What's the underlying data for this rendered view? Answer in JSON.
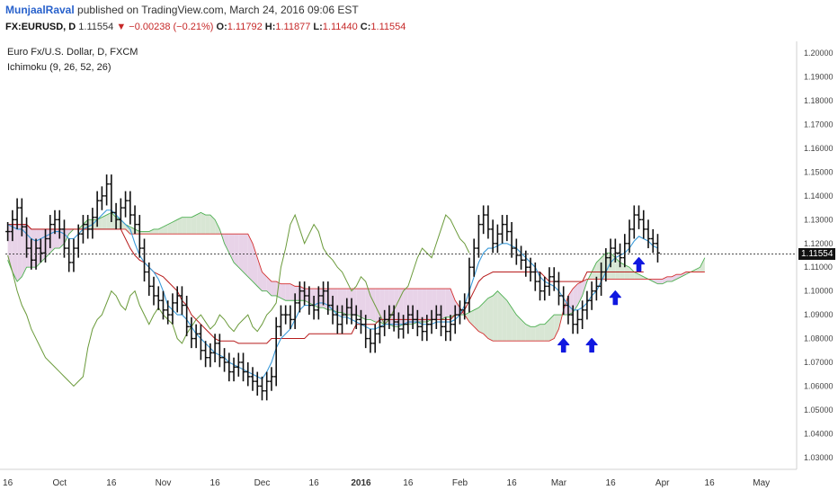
{
  "header": {
    "author": "MunjaalRaval",
    "published": "published on TradingView.com, March 24, 2016 09:06 EST",
    "symbol": "FX:EURUSD, D",
    "last": "1.11554",
    "change": "−0.00238 (−0.21%)",
    "open_label": "O:",
    "open": "1.11792",
    "high_label": "H:",
    "high": "1.11877",
    "low_label": "L:",
    "low": "1.11440",
    "close_label": "C:",
    "close": "1.11554"
  },
  "legend": {
    "instrument": "Euro Fx/U.S. Dollar, D, FXCM",
    "indicator": "Ichimoku (9, 26, 52, 26)"
  },
  "price_tag": "1.11554",
  "colors": {
    "conversion": "#3a9ad9",
    "base": "#b71c1c",
    "lagging": "#6a9a3a",
    "cloud_bear": "#e8d3e8",
    "cloud_bull": "#d8e6d4",
    "span_a": "#4caf50",
    "span_b": "#d32f2f",
    "arrow": "#1018e0"
  },
  "chart_data": {
    "type": "ohlc",
    "ylim": [
      1.025,
      1.205
    ],
    "y_ticks": [
      "1.20000",
      "1.19000",
      "1.18000",
      "1.17000",
      "1.16000",
      "1.15000",
      "1.14000",
      "1.13000",
      "1.12000",
      "1.11000",
      "1.10000",
      "1.09000",
      "1.08000",
      "1.07000",
      "1.06000",
      "1.05000",
      "1.04000",
      "1.03000"
    ],
    "x_ticks": [
      {
        "label": "16",
        "bar": 0
      },
      {
        "label": "Oct",
        "bar": 11
      },
      {
        "label": "16",
        "bar": 22
      },
      {
        "label": "Nov",
        "bar": 33
      },
      {
        "label": "16",
        "bar": 44
      },
      {
        "label": "Dec",
        "bar": 54
      },
      {
        "label": "16",
        "bar": 65
      },
      {
        "label": "2016",
        "bar": 75
      },
      {
        "label": "16",
        "bar": 85
      },
      {
        "label": "Feb",
        "bar": 96
      },
      {
        "label": "16",
        "bar": 107
      },
      {
        "label": "Mar",
        "bar": 117
      },
      {
        "label": "16",
        "bar": 128
      },
      {
        "label": "Apr",
        "bar": 139
      },
      {
        "label": "16",
        "bar": 149
      },
      {
        "label": "May",
        "bar": 160
      }
    ],
    "total_bars": 168,
    "close": [
      1.125,
      1.13,
      1.135,
      1.127,
      1.118,
      1.113,
      1.118,
      1.116,
      1.122,
      1.128,
      1.13,
      1.126,
      1.118,
      1.112,
      1.118,
      1.124,
      1.128,
      1.126,
      1.131,
      1.138,
      1.14,
      1.145,
      1.133,
      1.13,
      1.135,
      1.138,
      1.132,
      1.128,
      1.118,
      1.108,
      1.102,
      1.098,
      1.096,
      1.092,
      1.09,
      1.095,
      1.098,
      1.094,
      1.085,
      1.08,
      1.082,
      1.075,
      1.072,
      1.074,
      1.078,
      1.072,
      1.07,
      1.066,
      1.068,
      1.07,
      1.066,
      1.064,
      1.062,
      1.06,
      1.058,
      1.062,
      1.064,
      1.085,
      1.09,
      1.09,
      1.088,
      1.095,
      1.1,
      1.098,
      1.094,
      1.092,
      1.098,
      1.1,
      1.094,
      1.09,
      1.086,
      1.09,
      1.093,
      1.09,
      1.088,
      1.086,
      1.08,
      1.078,
      1.082,
      1.085,
      1.088,
      1.09,
      1.087,
      1.084,
      1.086,
      1.09,
      1.088,
      1.085,
      1.083,
      1.086,
      1.088,
      1.09,
      1.085,
      1.083,
      1.086,
      1.09,
      1.092,
      1.095,
      1.11,
      1.118,
      1.128,
      1.132,
      1.126,
      1.12,
      1.124,
      1.128,
      1.125,
      1.118,
      1.115,
      1.113,
      1.11,
      1.108,
      1.104,
      1.1,
      1.102,
      1.106,
      1.104,
      1.098,
      1.094,
      1.09,
      1.086,
      1.088,
      1.092,
      1.096,
      1.1,
      1.102,
      1.108,
      1.114,
      1.118,
      1.116,
      1.114,
      1.12,
      1.126,
      1.132,
      1.13,
      1.126,
      1.122,
      1.12,
      1.116
    ],
    "conversion": [
      1.128,
      1.127,
      1.126,
      1.126,
      1.124,
      1.122,
      1.121,
      1.122,
      1.123,
      1.124,
      1.125,
      1.125,
      1.124,
      1.122,
      1.122,
      1.124,
      1.126,
      1.127,
      1.128,
      1.13,
      1.132,
      1.134,
      1.134,
      1.132,
      1.13,
      1.128,
      1.126,
      1.12,
      1.115,
      1.112,
      1.11,
      1.108,
      1.105,
      1.1,
      1.094,
      1.092,
      1.09,
      1.09,
      1.088,
      1.085,
      1.082,
      1.08,
      1.078,
      1.076,
      1.074,
      1.073,
      1.072,
      1.07,
      1.069,
      1.068,
      1.067,
      1.066,
      1.065,
      1.064,
      1.063,
      1.066,
      1.07,
      1.076,
      1.08,
      1.082,
      1.084,
      1.088,
      1.092,
      1.094,
      1.094,
      1.094,
      1.095,
      1.095,
      1.094,
      1.092,
      1.09,
      1.089,
      1.089,
      1.088,
      1.087,
      1.086,
      1.085,
      1.084,
      1.084,
      1.085,
      1.086,
      1.086,
      1.086,
      1.086,
      1.086,
      1.087,
      1.087,
      1.087,
      1.086,
      1.086,
      1.086,
      1.087,
      1.087,
      1.087,
      1.087,
      1.088,
      1.09,
      1.094,
      1.1,
      1.106,
      1.112,
      1.116,
      1.118,
      1.118,
      1.119,
      1.12,
      1.12,
      1.119,
      1.118,
      1.116,
      1.114,
      1.112,
      1.11,
      1.106,
      1.104,
      1.103,
      1.102,
      1.1,
      1.097,
      1.094,
      1.092,
      1.092,
      1.093,
      1.095,
      1.098,
      1.1,
      1.104,
      1.108,
      1.112,
      1.114,
      1.115,
      1.116,
      1.118,
      1.121,
      1.123,
      1.122,
      1.121,
      1.119,
      1.118
    ],
    "base": [
      1.128,
      1.128,
      1.128,
      1.128,
      1.128,
      1.126,
      1.126,
      1.126,
      1.126,
      1.126,
      1.126,
      1.126,
      1.126,
      1.126,
      1.126,
      1.126,
      1.126,
      1.126,
      1.126,
      1.126,
      1.126,
      1.126,
      1.126,
      1.126,
      1.126,
      1.122,
      1.118,
      1.115,
      1.113,
      1.112,
      1.11,
      1.108,
      1.107,
      1.106,
      1.104,
      1.102,
      1.1,
      1.096,
      1.094,
      1.09,
      1.088,
      1.086,
      1.084,
      1.082,
      1.08,
      1.079,
      1.079,
      1.079,
      1.079,
      1.078,
      1.078,
      1.078,
      1.078,
      1.078,
      1.078,
      1.078,
      1.08,
      1.08,
      1.08,
      1.08,
      1.08,
      1.08,
      1.08,
      1.08,
      1.082,
      1.082,
      1.082,
      1.082,
      1.082,
      1.082,
      1.082,
      1.082,
      1.082,
      1.082,
      1.086,
      1.086,
      1.086,
      1.086,
      1.086,
      1.088,
      1.088,
      1.088,
      1.088,
      1.088,
      1.088,
      1.088,
      1.088,
      1.088,
      1.088,
      1.088,
      1.088,
      1.088,
      1.088,
      1.088,
      1.088,
      1.09,
      1.09,
      1.092,
      1.096,
      1.1,
      1.104,
      1.106,
      1.107,
      1.108,
      1.108,
      1.108,
      1.108,
      1.108,
      1.108,
      1.108,
      1.108,
      1.108,
      1.108,
      1.108,
      1.106,
      1.104,
      1.104,
      1.104,
      1.104,
      1.104,
      1.104,
      1.104,
      1.104,
      1.108,
      1.108,
      1.108,
      1.108,
      1.108,
      1.108,
      1.108,
      1.108,
      1.108,
      1.108,
      1.108,
      1.108,
      1.108
    ],
    "span_a": [
      1.113,
      1.108,
      1.104,
      1.106,
      1.11,
      1.11,
      1.11,
      1.112,
      1.114,
      1.116,
      1.118,
      1.118,
      1.12,
      1.124,
      1.126,
      1.126,
      1.128,
      1.13,
      1.13,
      1.13,
      1.131,
      1.132,
      1.133,
      1.131,
      1.13,
      1.128,
      1.127,
      1.126,
      1.125,
      1.125,
      1.125,
      1.126,
      1.126,
      1.127,
      1.128,
      1.129,
      1.13,
      1.131,
      1.131,
      1.131,
      1.132,
      1.133,
      1.132,
      1.132,
      1.13,
      1.126,
      1.12,
      1.116,
      1.112,
      1.11,
      1.108,
      1.106,
      1.104,
      1.102,
      1.1,
      1.1,
      1.098,
      1.098,
      1.097,
      1.096,
      1.096,
      1.096,
      1.096,
      1.096,
      1.095,
      1.094,
      1.093,
      1.093,
      1.092,
      1.092,
      1.091,
      1.091,
      1.09,
      1.09,
      1.09,
      1.089,
      1.088,
      1.088,
      1.087,
      1.087,
      1.086,
      1.086,
      1.085,
      1.085,
      1.086,
      1.086,
      1.086,
      1.087,
      1.087,
      1.087,
      1.088,
      1.088,
      1.088,
      1.089,
      1.089,
      1.09,
      1.09,
      1.09,
      1.091,
      1.092,
      1.093,
      1.095,
      1.097,
      1.098,
      1.1,
      1.098,
      1.096,
      1.093,
      1.09,
      1.088,
      1.086,
      1.085,
      1.085,
      1.086,
      1.086,
      1.088,
      1.09,
      1.09,
      1.09,
      1.09,
      1.091,
      1.094,
      1.098,
      1.104,
      1.108,
      1.112,
      1.114,
      1.116,
      1.116,
      1.114,
      1.112,
      1.111,
      1.11,
      1.108,
      1.107,
      1.106,
      1.105,
      1.104,
      1.103,
      1.103,
      1.104,
      1.104,
      1.105,
      1.106,
      1.107,
      1.108,
      1.109,
      1.11,
      1.114
    ],
    "span_b": [
      1.128,
      1.128,
      1.128,
      1.128,
      1.128,
      1.126,
      1.126,
      1.126,
      1.126,
      1.126,
      1.126,
      1.126,
      1.126,
      1.126,
      1.126,
      1.126,
      1.126,
      1.126,
      1.126,
      1.126,
      1.126,
      1.126,
      1.126,
      1.126,
      1.126,
      1.126,
      1.124,
      1.124,
      1.124,
      1.124,
      1.124,
      1.124,
      1.124,
      1.124,
      1.124,
      1.124,
      1.124,
      1.124,
      1.124,
      1.124,
      1.124,
      1.124,
      1.124,
      1.124,
      1.124,
      1.124,
      1.124,
      1.124,
      1.124,
      1.124,
      1.124,
      1.124,
      1.12,
      1.114,
      1.108,
      1.106,
      1.104,
      1.104,
      1.103,
      1.103,
      1.103,
      1.102,
      1.102,
      1.101,
      1.101,
      1.101,
      1.101,
      1.101,
      1.101,
      1.101,
      1.101,
      1.101,
      1.101,
      1.101,
      1.101,
      1.101,
      1.101,
      1.101,
      1.101,
      1.101,
      1.101,
      1.101,
      1.101,
      1.101,
      1.101,
      1.101,
      1.101,
      1.101,
      1.101,
      1.101,
      1.101,
      1.101,
      1.101,
      1.101,
      1.101,
      1.096,
      1.093,
      1.09,
      1.087,
      1.085,
      1.083,
      1.082,
      1.08,
      1.079,
      1.079,
      1.079,
      1.079,
      1.079,
      1.079,
      1.079,
      1.079,
      1.079,
      1.079,
      1.079,
      1.079,
      1.079,
      1.08,
      1.084,
      1.092,
      1.098,
      1.101,
      1.103,
      1.104,
      1.105,
      1.105,
      1.105,
      1.105,
      1.105,
      1.105,
      1.105,
      1.105,
      1.105,
      1.105,
      1.105,
      1.105,
      1.105,
      1.105,
      1.105,
      1.105,
      1.105,
      1.106,
      1.106,
      1.107,
      1.107,
      1.108,
      1.108,
      1.108,
      1.108,
      1.108
    ],
    "lagging": [
      1.115,
      1.108,
      1.1,
      1.094,
      1.09,
      1.084,
      1.08,
      1.076,
      1.072,
      1.07,
      1.068,
      1.066,
      1.064,
      1.062,
      1.06,
      1.062,
      1.064,
      1.076,
      1.084,
      1.088,
      1.09,
      1.095,
      1.1,
      1.098,
      1.094,
      1.092,
      1.098,
      1.1,
      1.094,
      1.09,
      1.086,
      1.09,
      1.093,
      1.09,
      1.088,
      1.086,
      1.08,
      1.078,
      1.082,
      1.085,
      1.088,
      1.09,
      1.087,
      1.084,
      1.086,
      1.09,
      1.088,
      1.085,
      1.083,
      1.086,
      1.088,
      1.09,
      1.085,
      1.083,
      1.086,
      1.09,
      1.092,
      1.095,
      1.11,
      1.118,
      1.128,
      1.132,
      1.126,
      1.12,
      1.124,
      1.128,
      1.125,
      1.118,
      1.115,
      1.113,
      1.11,
      1.108,
      1.104,
      1.1,
      1.102,
      1.106,
      1.104,
      1.098,
      1.094,
      1.09,
      1.086,
      1.088,
      1.092,
      1.096,
      1.1,
      1.102,
      1.108,
      1.114,
      1.118,
      1.116,
      1.114,
      1.12,
      1.126,
      1.132,
      1.13,
      1.126,
      1.122,
      1.12,
      1.116
    ],
    "annotations": [
      {
        "type": "arrow-up",
        "bar": 118,
        "price": 1.077
      },
      {
        "type": "arrow-up",
        "bar": 124,
        "price": 1.077
      },
      {
        "type": "arrow-up",
        "bar": 129,
        "price": 1.097
      },
      {
        "type": "arrow-up",
        "bar": 134,
        "price": 1.111
      }
    ],
    "last_price": 1.11554
  }
}
